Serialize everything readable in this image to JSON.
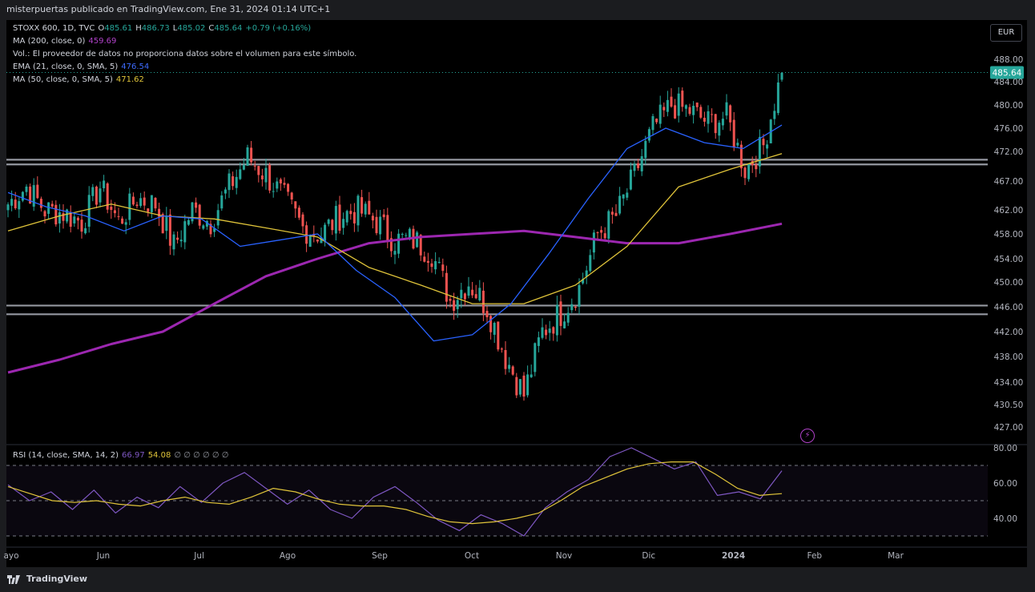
{
  "header": {
    "text": "misterpuertas publicado en TradingView.com, Ene 31, 2024 01:14 UTC+1"
  },
  "currency": "EUR",
  "legend": {
    "symbol": "STOXX 600, 1D, TVC",
    "o_label": "O",
    "o_val": "485.61",
    "h_label": "H",
    "h_val": "486.73",
    "l_label": "L",
    "l_val": "485.02",
    "c_label": "C",
    "c_val": "485.64",
    "change": "+0.79 (+0.16%)",
    "ma200_label": "MA (200, close, 0)",
    "ma200_val": "459.69",
    "vol_text": "Vol.: El proveedor de datos no proporciona datos sobre el volumen para este símbolo.",
    "ema21_label": "EMA (21, close, 0, SMA, 5)",
    "ema21_val": "476.54",
    "ma50_label": "MA (50, close, 0, SMA, 5)",
    "ma50_val": "471.62",
    "rsi_label": "RSI (14, close, SMA, 14, 2)",
    "rsi_val": "66.97",
    "rsi_ma_val": "54.08",
    "rsi_extra": "∅ ∅ ∅ ∅ ∅ ∅"
  },
  "footer": {
    "brand": "TradingView"
  },
  "colors": {
    "up": "#26a69a",
    "down": "#ef5350",
    "ema21": "#2962ff",
    "ma50": "#e0c43a",
    "ma200": "#9c27b0",
    "rsi": "#7e57c2",
    "rsi_ma": "#e0c43a",
    "levels": "#9598a1"
  },
  "chart_data": {
    "type": "candlestick",
    "title": "STOXX 600, 1D, TVC",
    "price_axis_ticks": [
      488,
      484,
      480,
      476,
      472,
      467,
      462,
      458,
      454,
      450,
      446,
      442,
      438,
      434,
      430.5,
      427
    ],
    "price_tick_labels": [
      "488.00",
      "484.00",
      "480.00",
      "476.00",
      "472.00",
      "467.00",
      "462.00",
      "458.00",
      "454.00",
      "450.00",
      "446.00",
      "442.00",
      "438.00",
      "434.00",
      "430.50",
      "427.00"
    ],
    "last_price": 485.64,
    "last_price_label": "485.64",
    "x_tick_labels": [
      "ayo",
      "Jun",
      "Jul",
      "Ago",
      "Sep",
      "Oct",
      "Nov",
      "Dic",
      "2024",
      "Feb",
      "Mar"
    ],
    "x_tick_bar_index": [
      0,
      25,
      51,
      75,
      100,
      125,
      150,
      173,
      196,
      218,
      240
    ],
    "horizontal_levels": [
      470.6,
      469.8,
      446.2,
      444.8
    ],
    "weekly_closes": [
      463.0,
      466.0,
      462.0,
      461.5,
      460.0,
      466.0,
      460.0,
      464.0,
      463.0,
      456.0,
      462.0,
      460.0,
      466.0,
      471.0,
      468.0,
      464.0,
      459.0,
      458.0,
      461.0,
      462.0,
      460.0,
      457.0,
      457.0,
      455.0,
      447.0,
      450.0,
      446.0,
      438.0,
      432.0,
      442.0,
      445.0,
      449.0,
      458.0,
      461.0,
      468.0,
      476.0,
      480.0,
      479.0,
      477.0,
      478.0,
      469.0,
      473.0,
      485.6
    ],
    "ma200": [
      435.5,
      437.5,
      440.0,
      442.0,
      446.5,
      451.0,
      454.0,
      456.5,
      457.5,
      458.0,
      458.5,
      457.5,
      456.5,
      456.5,
      458.0,
      459.7
    ],
    "ema21": [
      465.0,
      462.5,
      461.0,
      458.5,
      461.0,
      460.5,
      456.0,
      457.0,
      458.0,
      452.0,
      447.5,
      440.5,
      441.5,
      446.5,
      455.0,
      464.0,
      472.5,
      476.0,
      473.5,
      472.5,
      476.54
    ],
    "ma50": [
      458.5,
      461.0,
      463.0,
      461.0,
      460.5,
      459.0,
      457.5,
      452.5,
      449.5,
      446.5,
      446.5,
      449.5,
      456.0,
      466.0,
      469.0,
      471.62
    ],
    "rsi": {
      "ticks": [
        80,
        60,
        40
      ],
      "tick_labels": [
        "80.00",
        "60.00",
        "40.00"
      ],
      "bands": [
        70,
        50,
        30
      ],
      "values": [
        59,
        50,
        55,
        45,
        56,
        43,
        52,
        46,
        58,
        49,
        60,
        66,
        57,
        48,
        56,
        45,
        40,
        52,
        58,
        49,
        39,
        33,
        42,
        37,
        30,
        46,
        55,
        62,
        75,
        80,
        74,
        68,
        72,
        53,
        55,
        51,
        67
      ],
      "ma_values": [
        58,
        54,
        50,
        49,
        50,
        48,
        47,
        50,
        52,
        49,
        48,
        52,
        57,
        55,
        51,
        48,
        47,
        47,
        45,
        41,
        38,
        37,
        38,
        40,
        43,
        50,
        58,
        63,
        68,
        71,
        72,
        72,
        65,
        57,
        53,
        54
      ]
    }
  }
}
